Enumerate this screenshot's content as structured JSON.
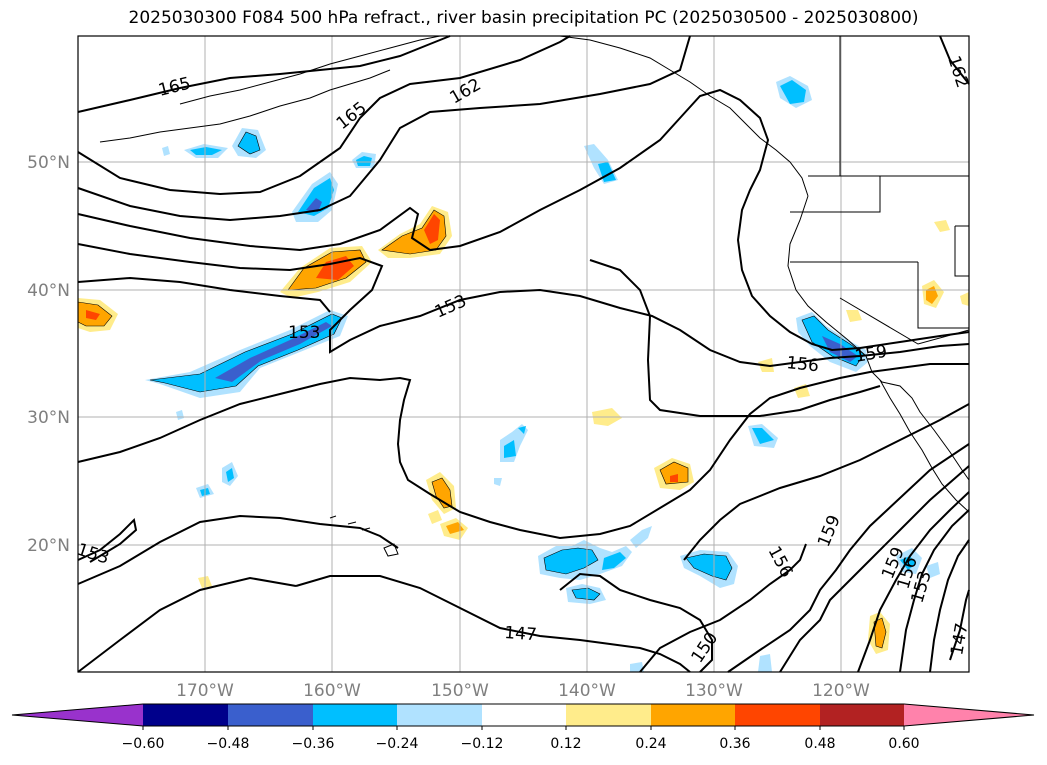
{
  "title": "2025030300 F084 500 hPa refract., river basin precipitation PC (2025030500 - 2025030800)",
  "map": {
    "lon_labels": [
      "170°W",
      "160°W",
      "150°W",
      "140°W",
      "130°W",
      "120°W"
    ],
    "lat_labels": [
      "50°N",
      "40°N",
      "30°N",
      "20°N"
    ],
    "contour_labels": [
      "165",
      "165",
      "162",
      "162",
      "153",
      "153",
      "153",
      "156",
      "159",
      "156",
      "159",
      "159",
      "156",
      "153",
      "150",
      "147",
      "147",
      "150"
    ]
  },
  "colorbar": {
    "tick_labels": [
      "−0.60",
      "−0.48",
      "−0.36",
      "−0.24",
      "−0.12",
      "0.12",
      "0.24",
      "0.36",
      "0.48",
      "0.60"
    ],
    "colors": [
      "#9932cc",
      "#00008b",
      "#3a5fcd",
      "#00bfff",
      "#b0e2ff",
      "#ffffff",
      "#ffec8b",
      "#ffa500",
      "#ff4500",
      "#b22222",
      "#ff82ab"
    ]
  }
}
